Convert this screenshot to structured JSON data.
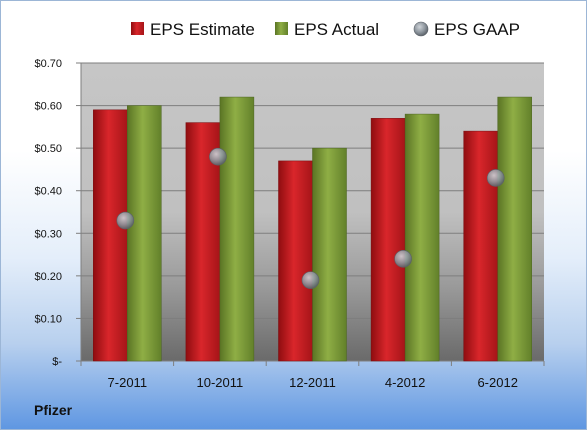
{
  "company": "Pfizer",
  "colors": {
    "estimate": "#cc1d22",
    "actual": "#7f9d35",
    "gaap": "#9aa3ad"
  },
  "chart_data": {
    "type": "bar",
    "categories": [
      "7-2011",
      "10-2011",
      "12-2011",
      "4-2012",
      "6-2012"
    ],
    "series": [
      {
        "name": "EPS Estimate",
        "kind": "bar",
        "values": [
          0.59,
          0.56,
          0.47,
          0.57,
          0.54
        ]
      },
      {
        "name": "EPS Actual",
        "kind": "bar",
        "values": [
          0.6,
          0.62,
          0.5,
          0.58,
          0.62
        ]
      },
      {
        "name": "EPS GAAP",
        "kind": "marker",
        "values": [
          0.33,
          0.48,
          0.19,
          0.24,
          0.43
        ]
      }
    ],
    "ylim": [
      0,
      0.7
    ],
    "yticks": [
      0,
      0.1,
      0.2,
      0.3,
      0.4,
      0.5,
      0.6,
      0.7
    ],
    "ytick_labels": [
      "$-",
      "$0.10",
      "$0.20",
      "$0.30",
      "$0.40",
      "$0.50",
      "$0.60",
      "$0.70"
    ],
    "grid": true,
    "legend": "top"
  }
}
